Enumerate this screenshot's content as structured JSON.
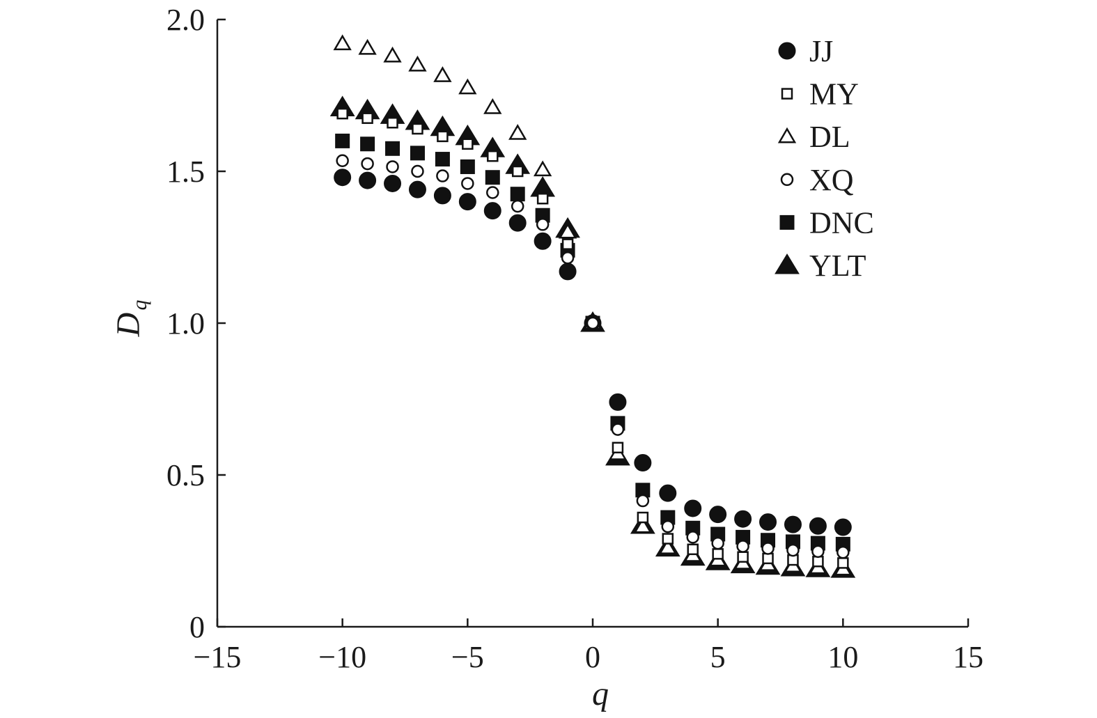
{
  "chart_data": {
    "type": "scatter",
    "xlabel": "q",
    "ylabel_main": "D",
    "ylabel_sub": "q",
    "xlim": [
      -15,
      15
    ],
    "ylim": [
      0,
      2.0
    ],
    "x_ticks": [
      -15,
      -10,
      -5,
      0,
      5,
      10,
      15
    ],
    "x_tick_labels": [
      "−15",
      "−10",
      "−5",
      "0",
      "5",
      "10",
      "15"
    ],
    "y_ticks": [
      0,
      0.5,
      1.0,
      1.5,
      2.0
    ],
    "y_tick_labels": [
      "0",
      "0.5",
      "1.0",
      "1.5",
      "2.0"
    ],
    "grid": false,
    "legend_position": "top-right",
    "x": [
      -10,
      -9,
      -8,
      -7,
      -6,
      -5,
      -4,
      -3,
      -2,
      -1,
      0,
      1,
      2,
      3,
      4,
      5,
      6,
      7,
      8,
      9,
      10
    ],
    "series": [
      {
        "name": "JJ",
        "marker": "filled-circle",
        "values": [
          1.48,
          1.47,
          1.46,
          1.44,
          1.42,
          1.4,
          1.37,
          1.33,
          1.27,
          1.17,
          1.0,
          0.74,
          0.54,
          0.44,
          0.39,
          0.37,
          0.355,
          0.345,
          0.337,
          0.332,
          0.328
        ]
      },
      {
        "name": "MY",
        "marker": "open-square",
        "values": [
          1.69,
          1.675,
          1.66,
          1.64,
          1.615,
          1.59,
          1.55,
          1.5,
          1.41,
          1.26,
          1.0,
          0.59,
          0.36,
          0.29,
          0.255,
          0.24,
          0.23,
          0.225,
          0.22,
          0.215,
          0.21
        ]
      },
      {
        "name": "DL",
        "marker": "open-triangle",
        "values": [
          1.92,
          1.905,
          1.88,
          1.85,
          1.815,
          1.775,
          1.71,
          1.625,
          1.505,
          1.3,
          1.0,
          0.57,
          0.33,
          0.26,
          0.235,
          0.22,
          0.21,
          0.205,
          0.2,
          0.195,
          0.19
        ]
      },
      {
        "name": "XQ",
        "marker": "open-circle",
        "values": [
          1.535,
          1.525,
          1.515,
          1.5,
          1.485,
          1.46,
          1.43,
          1.385,
          1.325,
          1.215,
          1.0,
          0.65,
          0.415,
          0.33,
          0.295,
          0.275,
          0.265,
          0.258,
          0.252,
          0.248,
          0.245
        ]
      },
      {
        "name": "DNC",
        "marker": "filled-square",
        "values": [
          1.6,
          1.59,
          1.575,
          1.56,
          1.54,
          1.515,
          1.48,
          1.425,
          1.355,
          1.24,
          1.0,
          0.67,
          0.45,
          0.36,
          0.325,
          0.305,
          0.295,
          0.285,
          0.28,
          0.275,
          0.272
        ]
      },
      {
        "name": "YLT",
        "marker": "filled-triangle",
        "values": [
          1.71,
          1.7,
          1.685,
          1.665,
          1.645,
          1.615,
          1.575,
          1.52,
          1.445,
          1.31,
          1.0,
          0.56,
          0.335,
          0.26,
          0.23,
          0.215,
          0.205,
          0.2,
          0.195,
          0.192,
          0.19
        ]
      }
    ]
  }
}
